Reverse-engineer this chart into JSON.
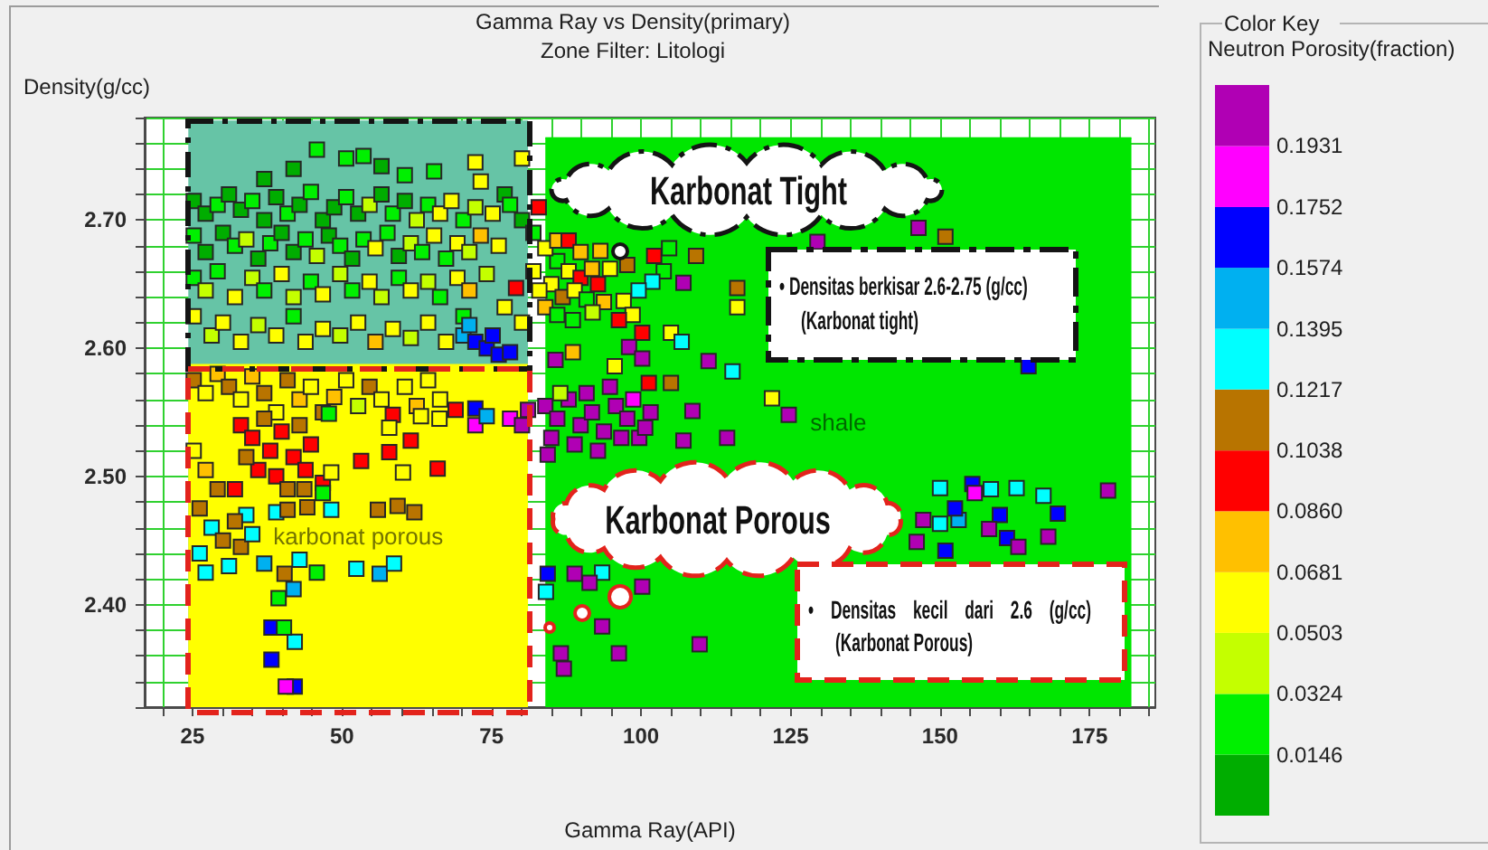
{
  "chart_data": {
    "type": "scatter",
    "title": "Gamma Ray vs Density(primary)",
    "subtitle": "Zone Filter: Litologi",
    "xlabel": "Gamma Ray(API)",
    "ylabel": "Density(g/cc)",
    "clabel": "Neutron Porosity(fraction)",
    "xlim": [
      17,
      186
    ],
    "xticks": [
      {
        "value": 20,
        "label": null
      },
      25,
      {
        "value": 30,
        "label": null
      },
      {
        "value": 35,
        "label": null
      },
      {
        "value": 40,
        "label": null
      },
      {
        "value": 45,
        "label": null
      },
      50,
      {
        "value": 55,
        "label": null
      },
      {
        "value": 60,
        "label": null
      },
      {
        "value": 65,
        "label": null
      },
      {
        "value": 70,
        "label": null
      },
      75,
      {
        "value": 80,
        "label": null
      },
      {
        "value": 85,
        "label": null
      },
      {
        "value": 90,
        "label": null
      },
      {
        "value": 95,
        "label": null
      },
      100,
      {
        "value": 105,
        "label": null
      },
      {
        "value": 110,
        "label": null
      },
      {
        "value": 115,
        "label": null
      },
      {
        "value": 120,
        "label": null
      },
      125,
      {
        "value": 130,
        "label": null
      },
      {
        "value": 135,
        "label": null
      },
      {
        "value": 140,
        "label": null
      },
      {
        "value": 145,
        "label": null
      },
      150,
      {
        "value": 155,
        "label": null
      },
      {
        "value": 160,
        "label": null
      },
      {
        "value": 165,
        "label": null
      },
      {
        "value": 170,
        "label": null
      },
      175,
      {
        "value": 180,
        "label": null
      },
      {
        "value": 185,
        "label": null
      }
    ],
    "ylim": [
      2.32,
      2.78
    ],
    "yticks": [
      {
        "value": 2.32,
        "label": null
      },
      {
        "value": 2.34,
        "label": null
      },
      {
        "value": 2.36,
        "label": null
      },
      {
        "value": 2.38,
        "label": null
      },
      {
        "value": 2.4,
        "label": "2.40"
      },
      {
        "value": 2.42,
        "label": null
      },
      {
        "value": 2.44,
        "label": null
      },
      {
        "value": 2.46,
        "label": null
      },
      {
        "value": 2.48,
        "label": null
      },
      {
        "value": 2.5,
        "label": "2.50"
      },
      {
        "value": 2.52,
        "label": null
      },
      {
        "value": 2.54,
        "label": null
      },
      {
        "value": 2.56,
        "label": null
      },
      {
        "value": 2.58,
        "label": null
      },
      {
        "value": 2.6,
        "label": "2.60"
      },
      {
        "value": 2.62,
        "label": null
      },
      {
        "value": 2.64,
        "label": null
      },
      {
        "value": 2.66,
        "label": null
      },
      {
        "value": 2.68,
        "label": null
      },
      {
        "value": 2.7,
        "label": "2.70"
      },
      {
        "value": 2.72,
        "label": null
      },
      {
        "value": 2.74,
        "label": null
      },
      {
        "value": 2.76,
        "label": null
      },
      {
        "value": 2.78,
        "label": null
      }
    ],
    "grid": true,
    "clim": [
      -0.0033,
      0.211
    ],
    "cticks": [
      0.0146,
      0.0324,
      0.0503,
      0.0681,
      {
        "value": 0.086,
        "label": "0.0860"
      },
      0.1038,
      0.1217,
      0.1395,
      0.1574,
      0.1752,
      0.1931
    ],
    "annotations": [
      "Karbonat Tight",
      "Karbonat Porous",
      "• Densitas berkisar 2.6-2.75 (g/cc)\n(Karbonat tight)",
      "• Densitas kecil dari 2.6 (g/cc)\n(Karbonat Porous)",
      "Color Key"
    ],
    "series": [
      {
        "type": "area",
        "color": "#66c4a6",
        "x": [
          24.3,
          81.1
        ],
        "values": [
          2.777,
          2.777
        ]
      },
      {
        "type": "area",
        "name": "karbonat porous",
        "color": "#ffff00",
        "x": [
          24.3,
          81.1
        ],
        "values": [
          2.587,
          2.587
        ]
      },
      {
        "type": "area",
        "name": "shale",
        "color": "#00e600",
        "x": [
          84,
          182
        ],
        "values": [
          2.764,
          2.764
        ]
      },
      {
        "marker": "square",
        "x": [
          45.8,
          50.7,
          53.6,
          56.6,
          72.3,
          80.1,
          73.2,
          41.9,
          37.0,
          60.5,
          65.4,
          77.2,
          25.2,
          27.2,
          29.2,
          31.1,
          33.1,
          35.0,
          37.0,
          39.0,
          40.9,
          42.9,
          44.8,
          46.8,
          48.7,
          50.7,
          52.7,
          54.6,
          56.6,
          58.5,
          60.5,
          62.5,
          64.4,
          66.4,
          68.3,
          70.3,
          72.3,
          75.2,
          78.1,
          80.1,
          25.2,
          27.2,
          30.1,
          32.1,
          34.0,
          36.0,
          38.0,
          39.9,
          41.9,
          43.9,
          45.8,
          47.8,
          49.7,
          51.7,
          53.6,
          55.6,
          57.6,
          59.5,
          61.5,
          63.4,
          65.4,
          67.4,
          69.3,
          71.3,
          73.2,
          76.2,
          79.1,
          25.2,
          27.2,
          29.2,
          32.1,
          35.0,
          37.0,
          39.9,
          41.9,
          44.8,
          46.8,
          49.7,
          51.7,
          54.6,
          56.6,
          59.5,
          61.5,
          64.4,
          66.4,
          69.3,
          71.3,
          74.2,
          77.2,
          25.2,
          28.2,
          30.1,
          33.1,
          36.0,
          39.0,
          41.9,
          43.9,
          46.8,
          49.7,
          52.7,
          55.6,
          58.5,
          61.5,
          64.4,
          67.4,
          70.3,
          80.1,
          70.3,
          72.3,
          74.2,
          76.2,
          78.1,
          71.3,
          75.2,
          25.2,
          27.2,
          29.2,
          31.1,
          33.1,
          35.0,
          37.0,
          39.0,
          40.9,
          42.9,
          44.8,
          46.8,
          48.7,
          50.7,
          52.7,
          54.6,
          56.6,
          58.5,
          60.5,
          62.5,
          64.4,
          66.4,
          69.0,
          72.3,
          78.1,
          80.1,
          81.1,
          72.3,
          74.2,
          33.1,
          35.0,
          37.0,
          38.0,
          39.9,
          41.9,
          42.9,
          44.8,
          36.0,
          39.0,
          40.9,
          34.0,
          43.9,
          46.8,
          32.1,
          47.8,
          53.2,
          57.9,
          61.5,
          66.0,
          59.3,
          62.1,
          25.2,
          27.2,
          29.2,
          26.2,
          28.2,
          30.1,
          26.2,
          27.2,
          31.1,
          33.1,
          35.0,
          37.0,
          39.0,
          40.9,
          42.9,
          34.0,
          32.1,
          48.2,
          45.8,
          52.4,
          56.3,
          58.7,
          40.4,
          41.9,
          39.4,
          44.2,
          56.0,
          46.8,
          43.7,
          38.2,
          38.2,
          42.1,
          42.1,
          40.6,
          40.3,
          57.9,
          60.2,
          48.2,
          63.2,
          66.3,
          82.9,
          86.0,
          87.9,
          89.9,
          91.8,
          85.0,
          86.9,
          88.9,
          90.9,
          92.8,
          83.0,
          84.0,
          86.0,
          93.8,
          93.2,
          102.2,
          104.7,
          109.2,
          103.8,
          101.9,
          99.6,
          107.1,
          97.1,
          98.6,
          96.3,
          100.2,
          105.0,
          106.8,
          91.9,
          88.6,
          85.7,
          88.6,
          95.6,
          98.0,
          100.2,
          101.3,
          105.0,
          111.3,
          115.3,
          116.1,
          116.1,
          129.5,
          146.4,
          150.9,
          164.8,
          121.9,
          124.7,
          108.6,
          107.1,
          114.4,
          82.0,
          84.0,
          86.0,
          82.0,
          87.9,
          89.9,
          94.8,
          97.7,
          84.0,
          86.0,
          87.9,
          89.9,
          91.8,
          93.8,
          95.8,
          97.7,
          99.7,
          101.6,
          88.9,
          92.8,
          96.7,
          100.7,
          85.0,
          90.9,
          94.8,
          98.7,
          86.5,
          84.4,
          150.0,
          155.4,
          158.5,
          162.8,
          167.3,
          178.1,
          169.7,
          160.0,
          153.1,
          150.0,
          146.1,
          150.9,
          158.2,
          161.2,
          163.1,
          168.1,
          147.2,
          155.8,
          152.5,
          84.4,
          88.9,
          93.5,
          84.1,
          100.2,
          91.4,
          93.5,
          96.3,
          86.6,
          87.1,
          109.8
        ],
        "values": [
          2.755,
          2.748,
          2.75,
          2.742,
          2.745,
          2.748,
          2.73,
          2.74,
          2.732,
          2.735,
          2.738,
          2.72,
          2.715,
          2.705,
          2.712,
          2.72,
          2.708,
          2.715,
          2.7,
          2.718,
          2.705,
          2.712,
          2.722,
          2.7,
          2.71,
          2.718,
          2.705,
          2.712,
          2.72,
          2.705,
          2.715,
          2.7,
          2.712,
          2.705,
          2.715,
          2.7,
          2.71,
          2.705,
          2.712,
          2.7,
          2.688,
          2.675,
          2.69,
          2.68,
          2.685,
          2.67,
          2.682,
          2.69,
          2.675,
          2.685,
          2.672,
          2.688,
          2.68,
          2.67,
          2.685,
          2.678,
          2.69,
          2.672,
          2.682,
          2.675,
          2.688,
          2.67,
          2.682,
          2.675,
          2.688,
          2.68,
          2.647,
          2.655,
          2.645,
          2.66,
          2.64,
          2.655,
          2.645,
          2.658,
          2.64,
          2.652,
          2.642,
          2.658,
          2.645,
          2.652,
          2.64,
          2.655,
          2.645,
          2.652,
          2.64,
          2.655,
          2.645,
          2.658,
          2.632,
          2.625,
          2.61,
          2.62,
          2.605,
          2.618,
          2.61,
          2.625,
          2.605,
          2.615,
          2.61,
          2.62,
          2.605,
          2.615,
          2.608,
          2.62,
          2.605,
          2.625,
          2.62,
          2.61,
          2.605,
          2.6,
          2.595,
          2.597,
          2.618,
          2.61,
          2.575,
          2.565,
          2.58,
          2.57,
          2.56,
          2.578,
          2.565,
          2.55,
          2.575,
          2.56,
          2.57,
          2.55,
          2.562,
          2.575,
          2.555,
          2.57,
          2.56,
          2.548,
          2.57,
          2.555,
          2.575,
          2.56,
          2.552,
          2.54,
          2.545,
          2.54,
          2.552,
          2.553,
          2.547,
          2.54,
          2.53,
          2.545,
          2.52,
          2.535,
          2.515,
          2.54,
          2.525,
          2.505,
          2.5,
          2.49,
          2.515,
          2.505,
          2.495,
          2.49,
          2.549,
          2.512,
          2.519,
          2.528,
          2.506,
          2.477,
          2.472,
          2.52,
          2.505,
          2.49,
          2.475,
          2.46,
          2.45,
          2.44,
          2.425,
          2.43,
          2.445,
          2.455,
          2.432,
          2.472,
          2.474,
          2.435,
          2.47,
          2.465,
          2.474,
          2.425,
          2.428,
          2.424,
          2.432,
          2.424,
          2.412,
          2.405,
          2.476,
          2.474,
          2.487,
          2.49,
          2.382,
          2.357,
          2.371,
          2.336,
          2.336,
          2.382,
          2.538,
          2.503,
          2.503,
          2.547,
          2.545,
          2.71,
          2.668,
          2.66,
          2.655,
          2.662,
          2.65,
          2.64,
          2.645,
          2.638,
          2.65,
          2.645,
          2.632,
          2.626,
          2.636,
          2.676,
          2.672,
          2.678,
          2.672,
          2.66,
          2.652,
          2.645,
          2.651,
          2.637,
          2.626,
          2.622,
          2.612,
          2.612,
          2.605,
          2.628,
          2.622,
          2.591,
          2.597,
          2.586,
          2.601,
          2.592,
          2.573,
          2.573,
          2.59,
          2.582,
          2.647,
          2.632,
          2.683,
          2.694,
          2.687,
          2.586,
          2.561,
          2.548,
          2.551,
          2.528,
          2.53,
          2.69,
          2.678,
          2.684,
          2.66,
          2.684,
          2.675,
          2.662,
          2.665,
          2.555,
          2.545,
          2.56,
          2.54,
          2.55,
          2.535,
          2.555,
          2.545,
          2.53,
          2.55,
          2.525,
          2.52,
          2.53,
          2.538,
          2.53,
          2.565,
          2.57,
          2.56,
          2.565,
          2.517,
          2.491,
          2.494,
          2.49,
          2.491,
          2.485,
          2.489,
          2.471,
          2.47,
          2.466,
          2.463,
          2.449,
          2.442,
          2.459,
          2.452,
          2.445,
          2.453,
          2.466,
          2.487,
          2.475,
          2.424,
          2.424,
          2.425,
          2.41,
          2.414,
          2.417,
          2.383,
          2.362,
          2.362,
          2.35,
          2.369
        ],
        "colors": [
          "#00f000",
          "#00f000",
          "#00f000",
          "#00ad00",
          "#ffff00",
          "#ffff00",
          "#ffff00",
          "#00ad00",
          "#00ad00",
          "#00f000",
          "#00f000",
          "#00ad00",
          "#00ad00",
          "#00ad00",
          "#00f000",
          "#00ad00",
          "#00ad00",
          "#00f000",
          "#00ad00",
          "#00ad00",
          "#00f000",
          "#00ad00",
          "#00f000",
          "#00ad00",
          "#00ad00",
          "#00f000",
          "#00ad00",
          "#c4ff00",
          "#00ad00",
          "#00f000",
          "#00ad00",
          "#c4ff00",
          "#00f000",
          "#ffff00",
          "#ffff00",
          "#00f000",
          "#c4ff00",
          "#ffff00",
          "#00f000",
          "#00ad00",
          "#00f000",
          "#00ad00",
          "#00ad00",
          "#00f000",
          "#c4ff00",
          "#00ad00",
          "#00f000",
          "#00ad00",
          "#00ad00",
          "#00f000",
          "#c4ff00",
          "#00ad00",
          "#00f000",
          "#00ad00",
          "#00f000",
          "#ffff00",
          "#00f000",
          "#00ad00",
          "#c4ff00",
          "#00f000",
          "#ffff00",
          "#00f000",
          "#ffff00",
          "#c4ff00",
          "#ffc000",
          "#ffff00",
          "#ff0000",
          "#00f000",
          "#c4ff00",
          "#00f000",
          "#ffff00",
          "#c4ff00",
          "#00f000",
          "#ffff00",
          "#c4ff00",
          "#00f000",
          "#ffff00",
          "#c4ff00",
          "#00f000",
          "#ffff00",
          "#c4ff00",
          "#00f000",
          "#ffff00",
          "#c4ff00",
          "#00f000",
          "#ffff00",
          "#ffc000",
          "#c4ff00",
          "#ffff00",
          "#ffff00",
          "#c4ff00",
          "#ffff00",
          "#ffff00",
          "#c4ff00",
          "#ffff00",
          "#00f000",
          "#ffff00",
          "#ffff00",
          "#c4ff00",
          "#ffff00",
          "#ffc000",
          "#ffff00",
          "#c4ff00",
          "#ffff00",
          "#ffff00",
          "#00f000",
          "#ffff00",
          "#00b0f0",
          "#0000ff",
          "#0000ff",
          "#0000ff",
          "#0000ff",
          "#00b0f0",
          "#0000ff",
          "#b87400",
          "#ffff00",
          "#ffc000",
          "#b87400",
          "#ffff00",
          "#ffc000",
          "#b87400",
          "#ffff00",
          "#b87400",
          "#ffc000",
          "#ffff00",
          "#b87400",
          "#ffc000",
          "#ffff00",
          "#c4ff00",
          "#b87400",
          "#ffff00",
          "#ff0000",
          "#ffff00",
          "#ffc000",
          "#ffff00",
          "#ffff00",
          "#ff0000",
          "#ff00ff",
          "#ff00ff",
          "#b000b4",
          "#b000b4",
          "#0000ff",
          "#00b0f0",
          "#ff0000",
          "#ff0000",
          "#b87400",
          "#ff0000",
          "#ff0000",
          "#ff0000",
          "#b87400",
          "#ff0000",
          "#ff0000",
          "#ff0000",
          "#b87400",
          "#b87400",
          "#ff0000",
          "#ff0000",
          "#ff0000",
          "#00f000",
          "#ff0000",
          "#ff0000",
          "#ff0000",
          "#ff0000",
          "#b87400",
          "#b87400",
          "#ffff00",
          "#ffc000",
          "#b87400",
          "#b87400",
          "#00ffff",
          "#b87400",
          "#00ffff",
          "#00ffff",
          "#00ffff",
          "#b87400",
          "#00ffff",
          "#00b0f0",
          "#00ffff",
          "#b87400",
          "#00ffff",
          "#00ffff",
          "#b87400",
          "#00ffff",
          "#00f000",
          "#00ffff",
          "#00b0f0",
          "#00ffff",
          "#b87400",
          "#00b0f0",
          "#00f000",
          "#b87400",
          "#b87400",
          "#00f000",
          "#b87400",
          "#0000ff",
          "#0000ff",
          "#00ffff",
          "#0000ff",
          "#ff00ff",
          "#00f000",
          "#ffff00",
          "#ffff00",
          "#ffff00",
          "#ffff00",
          "#ffff00",
          "#ff0000",
          "#00f000",
          "#ffff00",
          "#ff0000",
          "#ffc000",
          "#ffff00",
          "#b87400",
          "#ffff00",
          "#00f000",
          "#ff0000",
          "#ffff00",
          "#ffc000",
          "#00f000",
          "#ffc000",
          "#ffc000",
          "#ff0000",
          "#00f000",
          "#b87400",
          "#00f000",
          "#00ffff",
          "#00ffff",
          "#b000b4",
          "#ffff00",
          "#ffff00",
          "#ff0000",
          "#ff0000",
          "#ffff00",
          "#00ffff",
          "#c4ff00",
          "#00f000",
          "#b000b4",
          "#ffc000",
          "#ffff00",
          "#b000b4",
          "#b000b4",
          "#ff0000",
          "#b87400",
          "#b000b4",
          "#00ffff",
          "#b87400",
          "#ffff00",
          "#b000b4",
          "#b000b4",
          "#b87400",
          "#0000ff",
          "#ffff00",
          "#b000b4",
          "#b000b4",
          "#b000b4",
          "#b000b4",
          "#00f000",
          "#ffff00",
          "#ffc000",
          "#ffff00",
          "#ff0000",
          "#ffc000",
          "#ffff00",
          "#b87400",
          "#b000b4",
          "#b000b4",
          "#b000b4",
          "#b000b4",
          "#b000b4",
          "#b000b4",
          "#b000b4",
          "#b000b4",
          "#b000b4",
          "#b000b4",
          "#b000b4",
          "#b000b4",
          "#b000b4",
          "#b000b4",
          "#b000b4",
          "#b000b4",
          "#b000b4",
          "#ff00ff",
          "#c4ff00",
          "#b000b4",
          "#00ffff",
          "#0000ff",
          "#00ffff",
          "#00ffff",
          "#00ffff",
          "#b000b4",
          "#0000ff",
          "#0000ff",
          "#00b0f0",
          "#00ffff",
          "#b000b4",
          "#0000ff",
          "#b000b4",
          "#0000ff",
          "#b000b4",
          "#b000b4",
          "#b000b4",
          "#ff00ff",
          "#0000ff",
          "#0000ff",
          "#b000b4",
          "#00ffff",
          "#00ffff",
          "#b000b4",
          "#b000b4",
          "#b000b4",
          "#b000b4",
          "#b000b4",
          "#b000b4",
          "#b000b4"
        ]
      }
    ]
  }
}
